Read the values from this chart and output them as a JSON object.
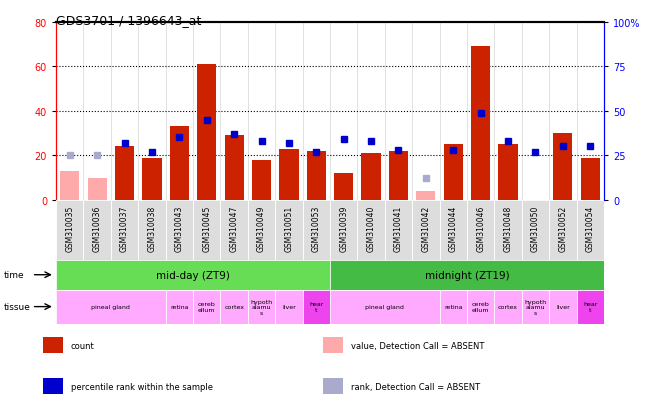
{
  "title": "GDS3701 / 1396643_at",
  "samples": [
    "GSM310035",
    "GSM310036",
    "GSM310037",
    "GSM310038",
    "GSM310043",
    "GSM310045",
    "GSM310047",
    "GSM310049",
    "GSM310051",
    "GSM310053",
    "GSM310039",
    "GSM310040",
    "GSM310041",
    "GSM310042",
    "GSM310044",
    "GSM310046",
    "GSM310048",
    "GSM310050",
    "GSM310052",
    "GSM310054"
  ],
  "count_values": [
    13,
    10,
    24,
    19,
    33,
    61,
    29,
    18,
    23,
    22,
    12,
    21,
    22,
    4,
    25,
    69,
    25,
    0,
    30,
    19
  ],
  "count_absent": [
    true,
    true,
    false,
    false,
    false,
    false,
    false,
    false,
    false,
    false,
    false,
    false,
    false,
    true,
    false,
    false,
    false,
    false,
    false,
    false
  ],
  "rank_values": [
    25,
    25,
    32,
    27,
    35,
    45,
    37,
    33,
    32,
    27,
    34,
    33,
    28,
    12,
    28,
    49,
    33,
    27,
    30,
    30
  ],
  "rank_absent": [
    true,
    true,
    false,
    false,
    false,
    false,
    false,
    false,
    false,
    false,
    false,
    false,
    false,
    true,
    false,
    false,
    false,
    false,
    false,
    false
  ],
  "ylim_left": [
    0,
    80
  ],
  "ylim_right": [
    0,
    100
  ],
  "yticks_left": [
    0,
    20,
    40,
    60,
    80
  ],
  "yticks_right": [
    0,
    25,
    50,
    75,
    100
  ],
  "bar_color_present": "#cc2200",
  "bar_color_absent": "#ffaaaa",
  "dot_color_present": "#0000cc",
  "dot_color_absent": "#aaaacc",
  "time_color_midday": "#66dd55",
  "time_color_midnight": "#44bb44",
  "tissue_color_main": "#ffaaff",
  "tissue_color_heart": "#ee44ee",
  "tissue_defs": [
    {
      "label": "pineal gland",
      "start": 0,
      "end": 4
    },
    {
      "label": "retina",
      "start": 4,
      "end": 5
    },
    {
      "label": "cerebellum",
      "start": 5,
      "end": 6
    },
    {
      "label": "cortex",
      "start": 6,
      "end": 7
    },
    {
      "label": "hypothalamus",
      "start": 7,
      "end": 8
    },
    {
      "label": "liver",
      "start": 8,
      "end": 9
    },
    {
      "label": "heart",
      "start": 9,
      "end": 10
    },
    {
      "label": "pineal gland",
      "start": 10,
      "end": 14
    },
    {
      "label": "retina",
      "start": 14,
      "end": 15
    },
    {
      "label": "cerebellum",
      "start": 15,
      "end": 16
    },
    {
      "label": "cortex",
      "start": 16,
      "end": 17
    },
    {
      "label": "hypothalamus",
      "start": 17,
      "end": 18
    },
    {
      "label": "liver",
      "start": 18,
      "end": 19
    },
    {
      "label": "heart",
      "start": 19,
      "end": 20
    }
  ]
}
